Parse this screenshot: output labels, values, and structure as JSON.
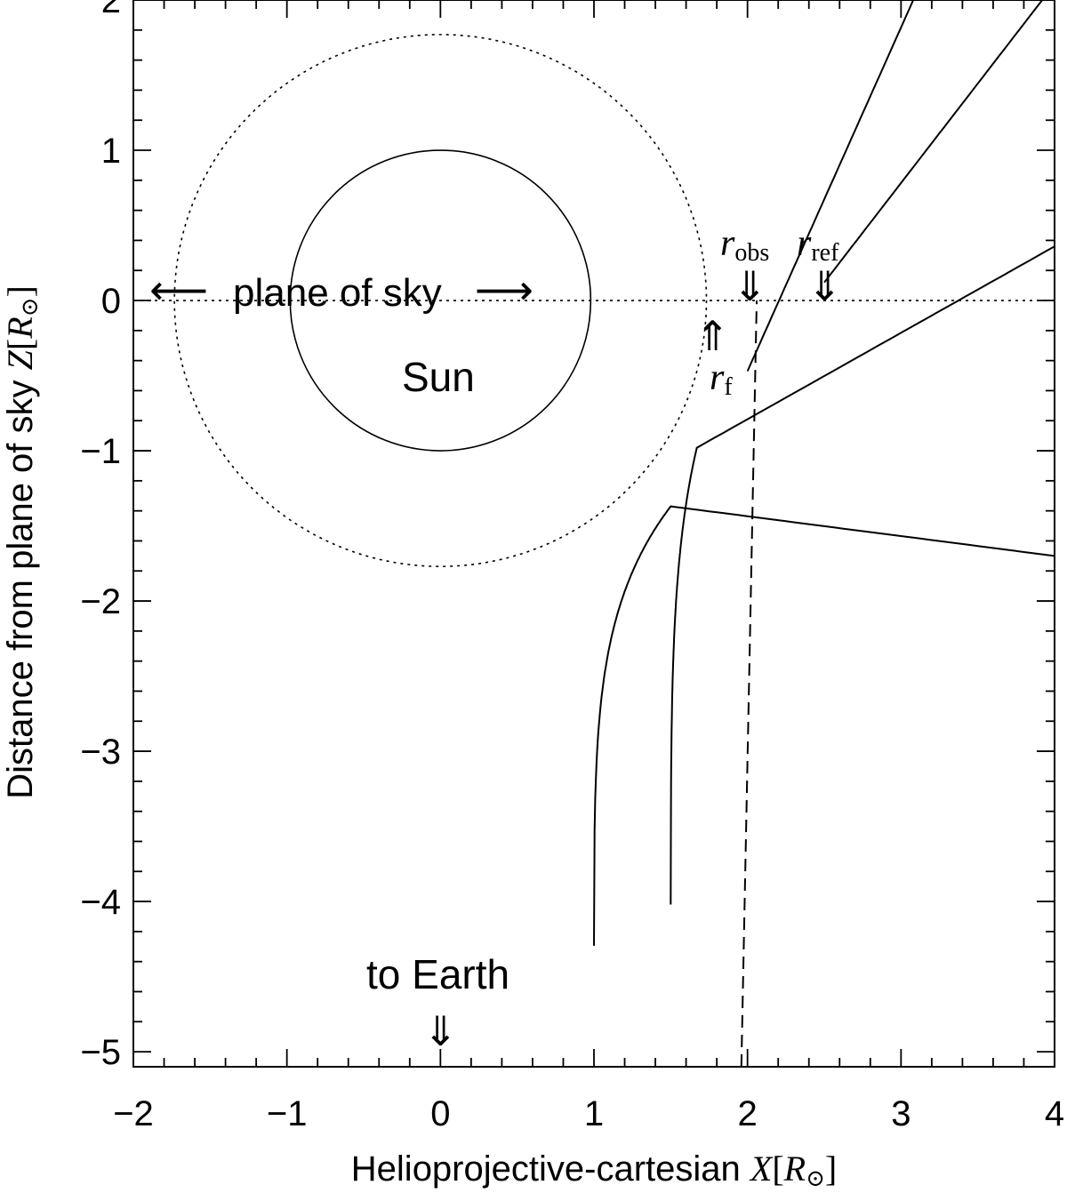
{
  "chart_data": {
    "type": "line",
    "xlabel_prefix": "Helioprojective-cartesian ",
    "xlabel_var": "X",
    "ylabel_prefix": "Distance from plane of sky ",
    "ylabel_var": "Z",
    "unit_open": "[",
    "unit_R": "R",
    "unit_sun": "⊙",
    "unit_close": "]",
    "xlim": [
      -2,
      4
    ],
    "ylim": [
      -5.1,
      2
    ],
    "x_ticks": [
      -2,
      -1,
      0,
      1,
      2,
      3,
      4
    ],
    "y_ticks": [
      2,
      1,
      0,
      -1,
      -2,
      -3,
      -4,
      -5
    ],
    "x_tick_labels": [
      "−2",
      "−1",
      "0",
      "1",
      "2",
      "3",
      "4"
    ],
    "y_tick_labels": [
      "2",
      "1",
      "0",
      "−1",
      "−2",
      "−3",
      "−4",
      "−5"
    ],
    "sun_radius": 1,
    "dotted_circle_radius": 1.77,
    "plane_of_sky_z": 0,
    "r_obs_x": 2.0,
    "r_f_x": 1.8,
    "r_ref_x": 2.52,
    "rays": [
      {
        "x0": 1.0,
        "ymin": -1.37,
        "x_min": 1.5,
        "x_end": 4.0,
        "y_end": -1.7
      },
      {
        "x0": 1.5,
        "ymin": -0.98,
        "x_min": 1.67,
        "x_end": 4.0,
        "y_end": 0.36
      },
      {
        "x0": 2.0,
        "ymin": -0.47,
        "x_min": 2.0,
        "x_end": 3.08,
        "y_end": 2.0
      },
      {
        "x0": 2.5,
        "ymin": 0.12,
        "x_min": 2.5,
        "x_end": 3.92,
        "y_end": 2.0
      }
    ],
    "grid": false
  },
  "annotations": {
    "plane_of_sky": "plane of sky",
    "sun": "Sun",
    "to_earth": "to Earth",
    "r_symbol": "r",
    "r_obs_sub": "obs",
    "r_ref_sub": "ref",
    "r_f_sub": "f",
    "left_arrow": "⟵",
    "right_arrow": "⟶",
    "down_double_arrow": "⇓",
    "up_double_arrow": "⇑"
  }
}
